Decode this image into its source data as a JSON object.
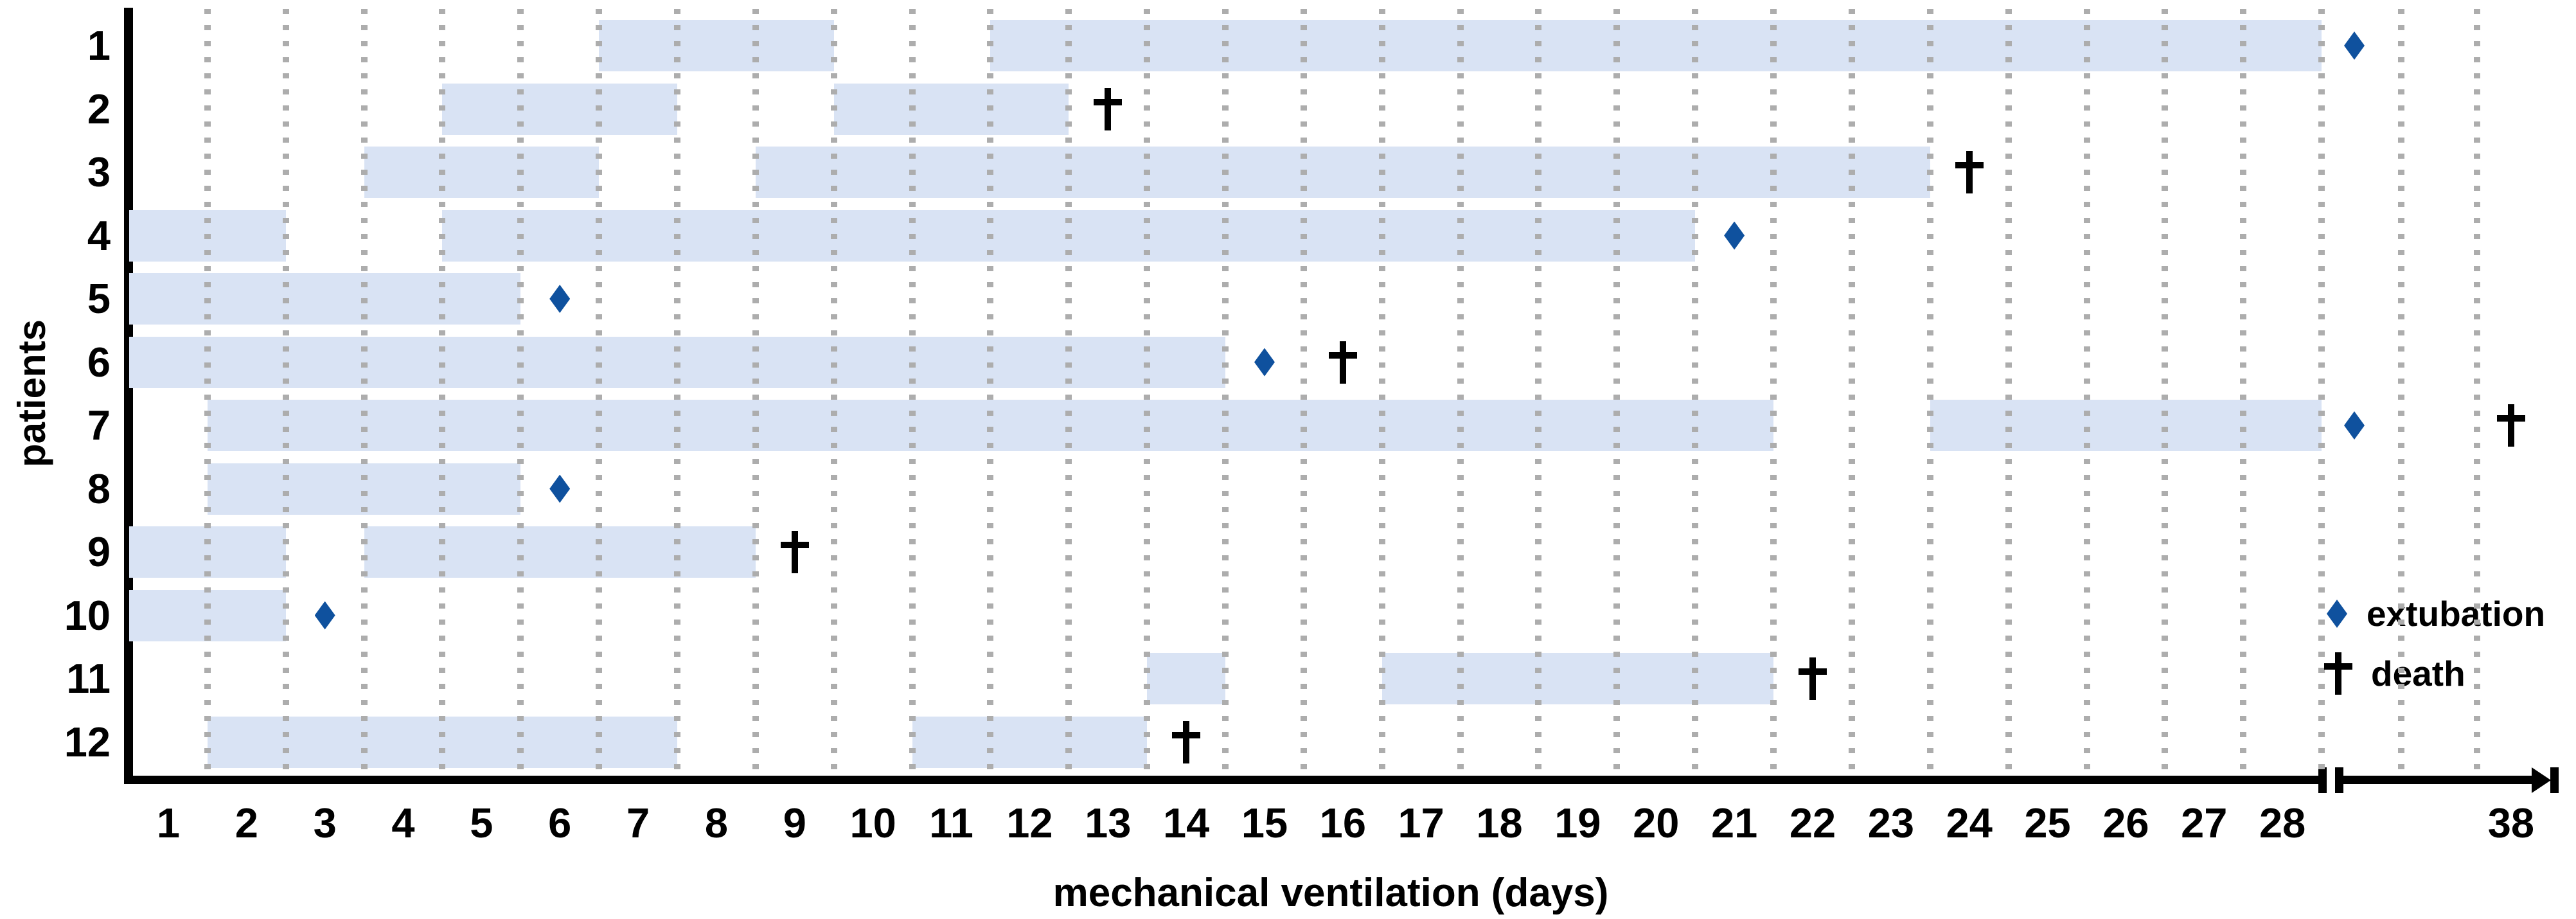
{
  "chart_data": {
    "type": "bar",
    "subtype": "gantt-timeline",
    "title": "",
    "xlabel": "mechanical ventilation (days)",
    "ylabel": "patients",
    "x_ticks": [
      1,
      2,
      3,
      4,
      5,
      6,
      7,
      8,
      9,
      10,
      11,
      12,
      13,
      14,
      15,
      16,
      17,
      18,
      19,
      20,
      21,
      22,
      23,
      24,
      25,
      26,
      27,
      28,
      38
    ],
    "x_axis": {
      "unit": "days",
      "range_shown": [
        1,
        28
      ],
      "break_after_day": 28,
      "post_break_label": 38,
      "arrow_end": true
    },
    "y_axis": {
      "label": "patients",
      "rows": [
        "1",
        "2",
        "3",
        "4",
        "5",
        "6",
        "7",
        "8",
        "9",
        "10",
        "11",
        "12"
      ]
    },
    "grid": "vertical-dotted-at-half-day-boundaries",
    "legend": [
      {
        "marker": "diamond",
        "label": "extubation",
        "color": "#0f519e"
      },
      {
        "marker": "dagger",
        "label": "death",
        "color": "#000000"
      }
    ],
    "patients": [
      {
        "id": "1",
        "mv_intervals_days": [
          [
            6.5,
            9.5
          ],
          [
            11.5,
            28.5
          ]
        ],
        "extubation_day": 29,
        "death_day": null
      },
      {
        "id": "2",
        "mv_intervals_days": [
          [
            4.5,
            7.5
          ],
          [
            9.5,
            12.5
          ]
        ],
        "extubation_day": null,
        "death_day": 13
      },
      {
        "id": "3",
        "mv_intervals_days": [
          [
            3.5,
            6.5
          ],
          [
            8.5,
            23.5
          ]
        ],
        "extubation_day": null,
        "death_day": 24
      },
      {
        "id": "4",
        "mv_intervals_days": [
          [
            0.5,
            2.5
          ],
          [
            4.5,
            20.5
          ]
        ],
        "extubation_day": 21,
        "death_day": null
      },
      {
        "id": "5",
        "mv_intervals_days": [
          [
            0.5,
            5.5
          ]
        ],
        "extubation_day": 6,
        "death_day": null
      },
      {
        "id": "6",
        "mv_intervals_days": [
          [
            0.5,
            14.5
          ]
        ],
        "extubation_day": 15,
        "death_day": 16
      },
      {
        "id": "7",
        "mv_intervals_days": [
          [
            1.5,
            21.5
          ],
          [
            23.5,
            28.5
          ]
        ],
        "extubation_day": 29,
        "death_day": 38
      },
      {
        "id": "8",
        "mv_intervals_days": [
          [
            1.5,
            5.5
          ]
        ],
        "extubation_day": 6,
        "death_day": null
      },
      {
        "id": "9",
        "mv_intervals_days": [
          [
            0.5,
            2.5
          ],
          [
            3.5,
            8.5
          ]
        ],
        "extubation_day": null,
        "death_day": 9
      },
      {
        "id": "10",
        "mv_intervals_days": [
          [
            0.5,
            2.5
          ]
        ],
        "extubation_day": 3,
        "death_day": null
      },
      {
        "id": "11",
        "mv_intervals_days": [
          [
            13.5,
            14.5
          ],
          [
            16.5,
            21.5
          ]
        ],
        "extubation_day": null,
        "death_day": 22
      },
      {
        "id": "12",
        "mv_intervals_days": [
          [
            1.5,
            7.5
          ],
          [
            10.5,
            13.5
          ]
        ],
        "extubation_day": null,
        "death_day": 14
      }
    ],
    "colors": {
      "bar_fill": "#d9e3f4",
      "extubation_marker": "#0f519e",
      "death_marker": "#000000",
      "axis": "#000000",
      "grid_dot": "#adadad",
      "background": "#ffffff"
    }
  }
}
